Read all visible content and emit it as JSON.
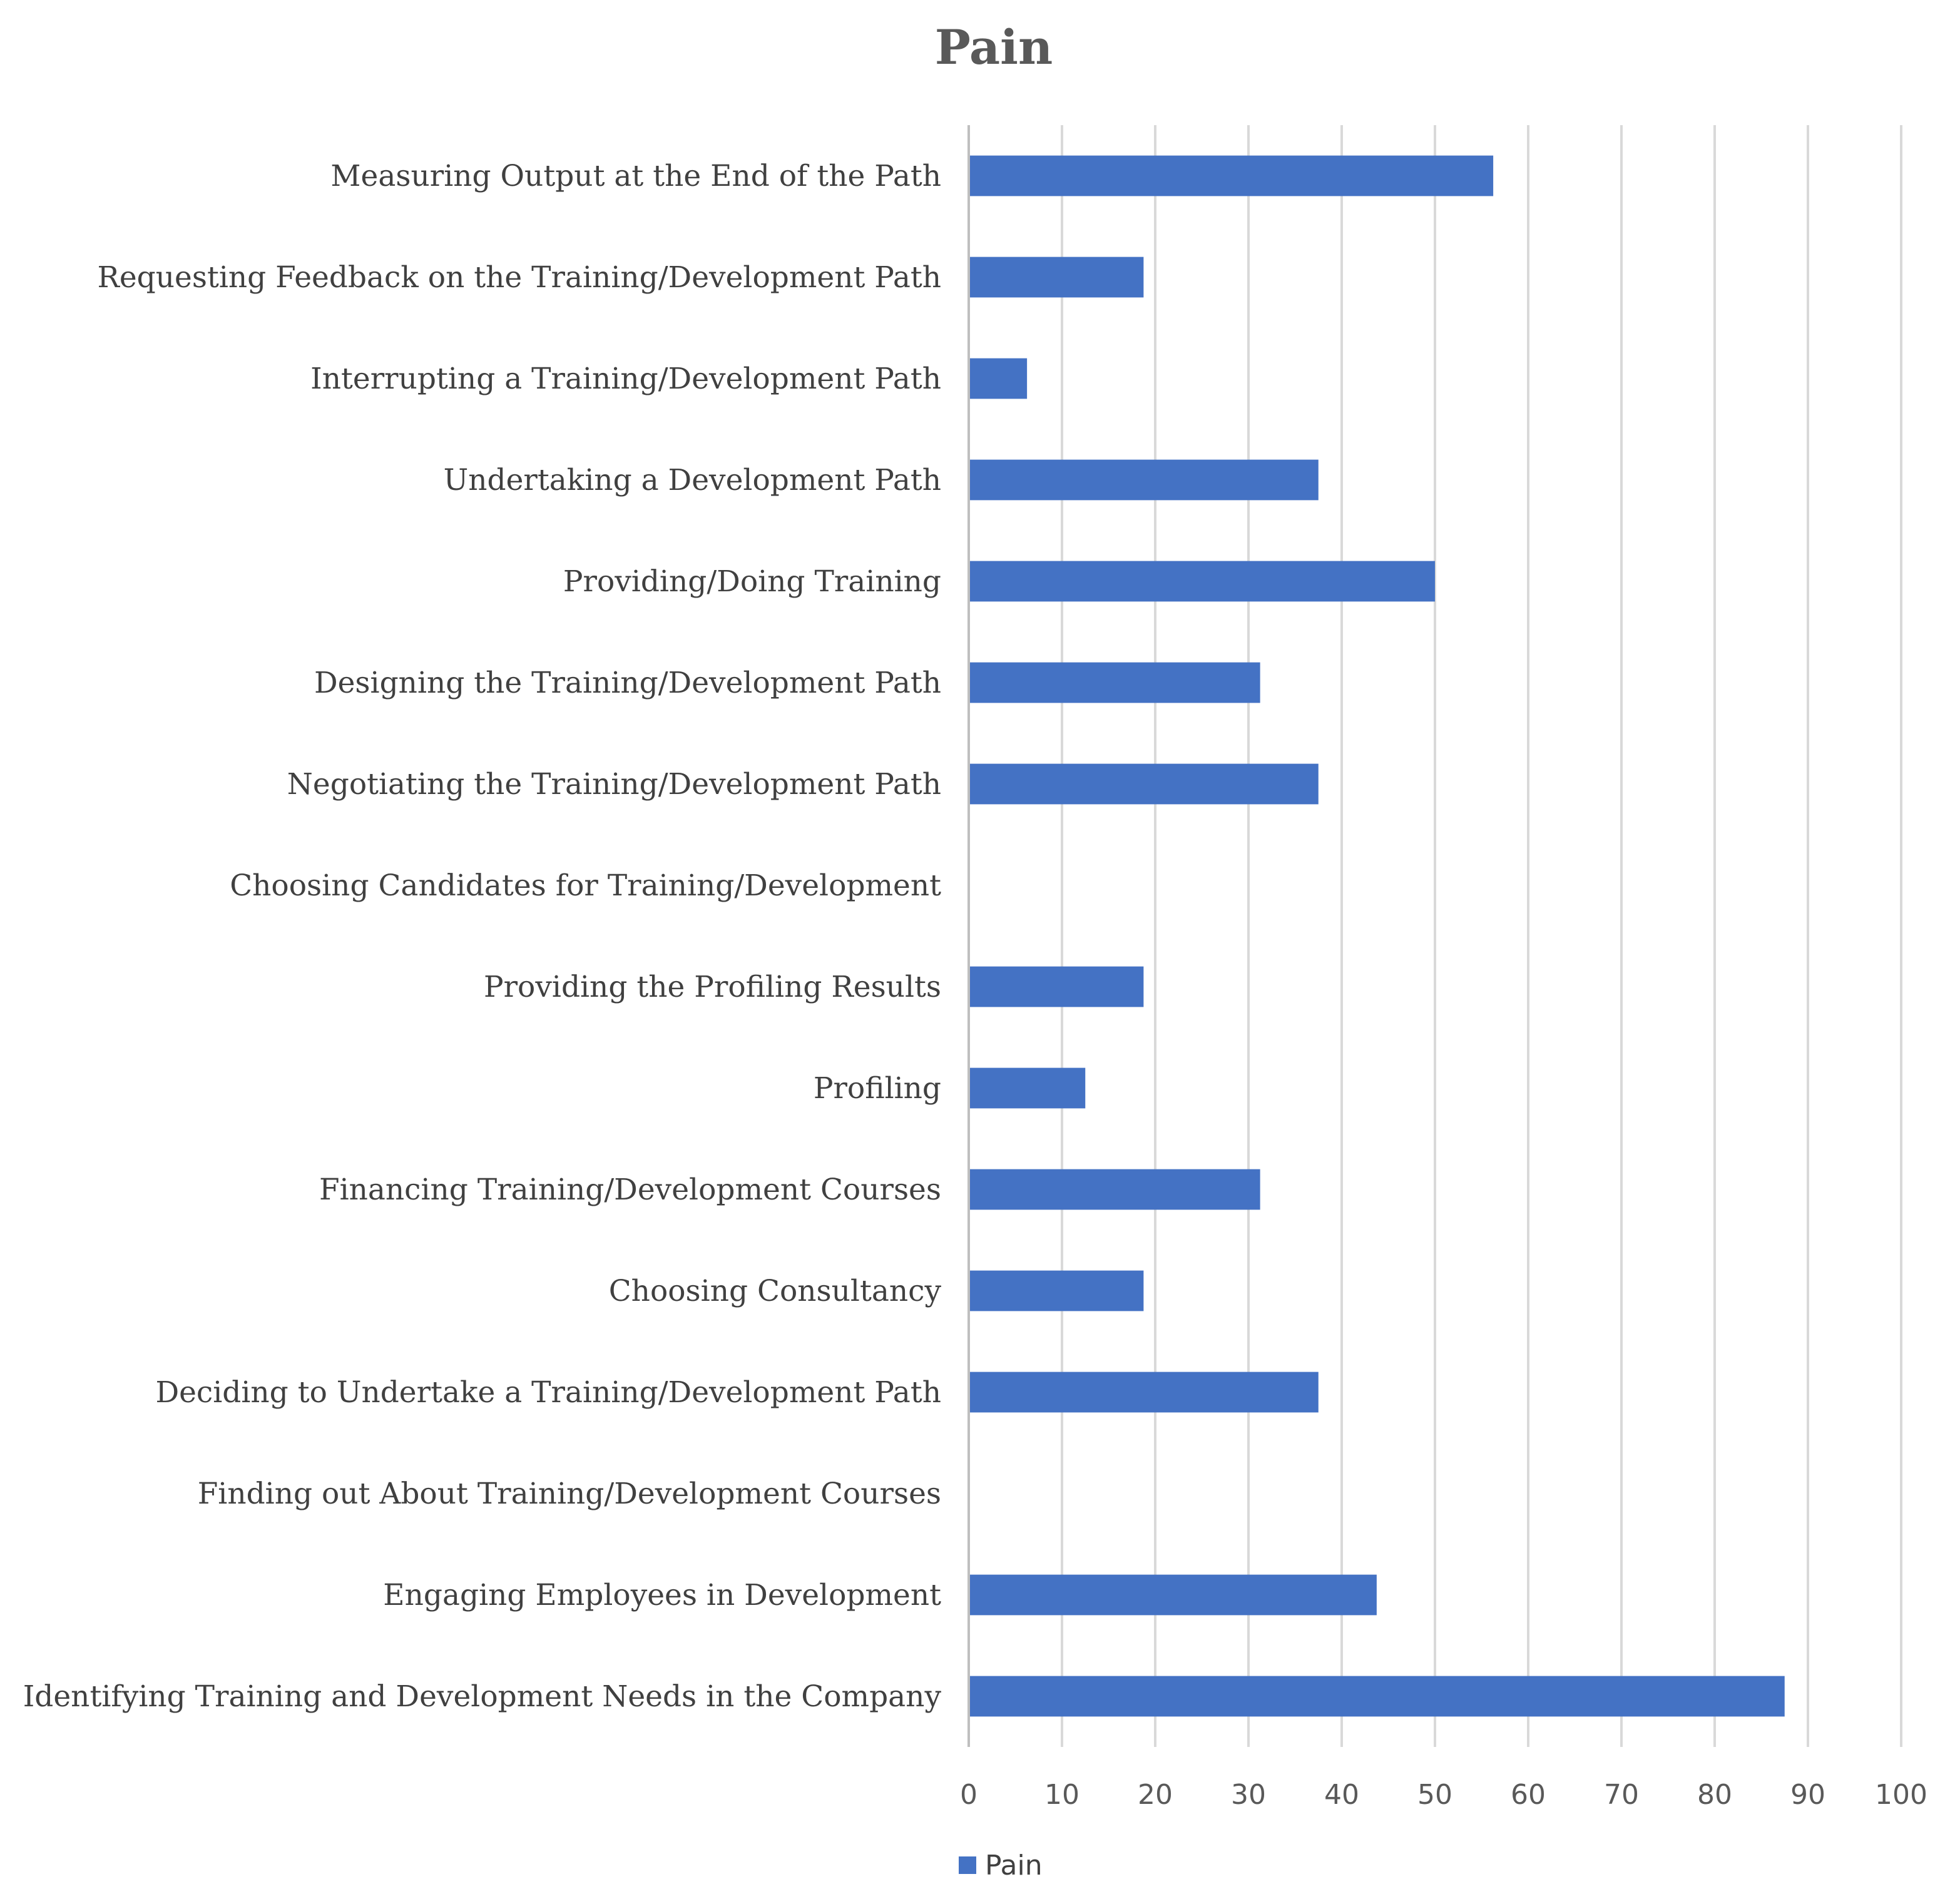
{
  "chart_data": {
    "type": "bar",
    "orientation": "horizontal",
    "title": "Pain",
    "xlabel": "",
    "ylabel": "",
    "xlim": [
      0,
      100
    ],
    "x_ticks": [
      "0",
      "10",
      "20",
      "30",
      "40",
      "50",
      "60",
      "70",
      "80",
      "90",
      "100"
    ],
    "grid": true,
    "legend_position": "bottom",
    "bar_color": "#4472C4",
    "categories": [
      "Measuring Output at the End of the Path",
      "Requesting Feedback on the Training/Development Path",
      "Interrupting a Training/Development Path",
      "Undertaking a Development Path",
      "Providing/Doing Training",
      "Designing the Training/Development Path",
      "Negotiating the Training/Development Path",
      "Choosing Candidates for Training/Development",
      "Providing the Profiling Results",
      "Profiling",
      "Financing Training/Development Courses",
      "Choosing Consultancy",
      "Deciding to Undertake a Training/Development Path",
      "Finding out About Training/Development Courses",
      "Engaging Employees in Development",
      "Identifying Training and Development Needs in the Company"
    ],
    "series": [
      {
        "name": "Pain",
        "values": [
          56.25,
          18.75,
          6.25,
          37.5,
          50,
          31.25,
          37.5,
          0,
          18.75,
          12.5,
          31.25,
          18.75,
          37.5,
          0,
          43.75,
          87.5
        ]
      }
    ]
  }
}
